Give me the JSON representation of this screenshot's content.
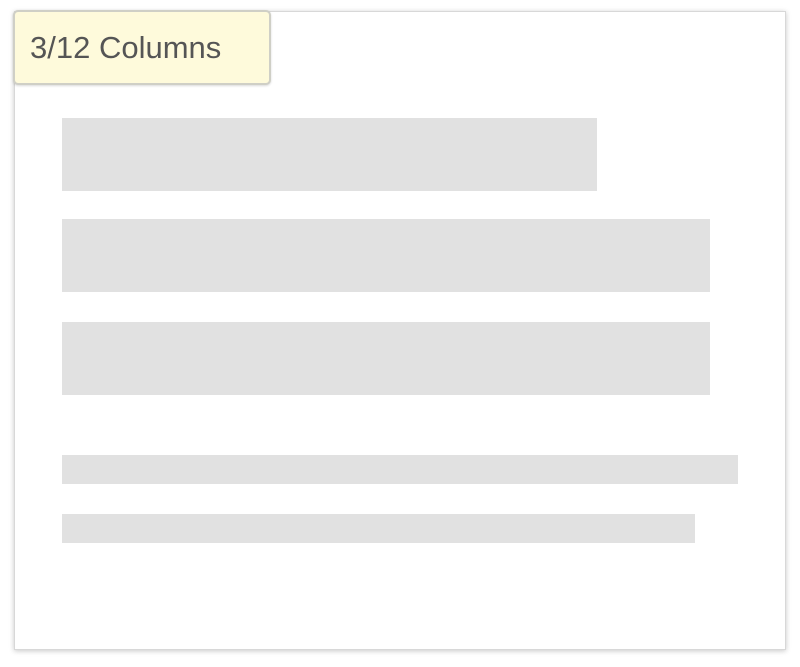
{
  "badge": {
    "label": "3/12 Columns"
  },
  "placeholders": {
    "count": 5,
    "kinds": [
      "large-block",
      "large-block",
      "large-block",
      "text-line",
      "text-line"
    ]
  },
  "colors": {
    "badge_background": "#fefadb",
    "placeholder": "#e1e1e1",
    "card_background": "#ffffff"
  }
}
